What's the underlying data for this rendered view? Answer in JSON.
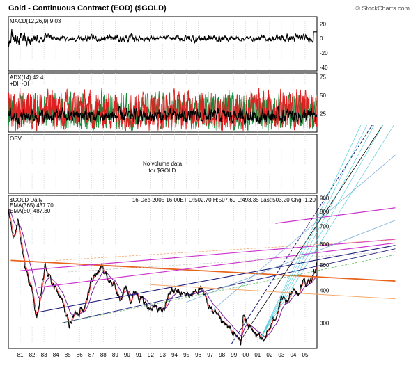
{
  "header": {
    "title": "Gold - Continuous Contract (EOD) ($GOLD)",
    "credit": "© StockCharts.com"
  },
  "colors": {
    "price": "#000000",
    "ema_long": "#7b1fa2",
    "ema_short": "#ff4040",
    "plus_di": "#1a8a3a",
    "minus_di": "#e02020",
    "adx": "#000000",
    "trend_orange": "#e8641c",
    "trend_magenta": "#cc33cc",
    "trend_navy": "#1c1c7a",
    "trend_sky": "#7fb2dc",
    "trend_cyan": "#42c8d8",
    "trend_peach": "#f3a86a"
  },
  "chart_data": {
    "type": "line",
    "x_axis": {
      "tick_labels": [
        "81",
        "82",
        "83",
        "84",
        "85",
        "86",
        "87",
        "88",
        "89",
        "90",
        "91",
        "92",
        "93",
        "94",
        "95",
        "96",
        "97",
        "98",
        "99",
        "00",
        "01",
        "02",
        "03",
        "04",
        "05"
      ]
    },
    "panels": [
      {
        "id": "macd",
        "label": "MACD(12,26,9) 9.03",
        "ylim": [
          -45,
          30
        ],
        "yticks": [
          20,
          0,
          -20,
          -40
        ],
        "series": [
          {
            "name": "MACD(12,26,9)",
            "last": 9.03
          }
        ]
      },
      {
        "id": "adx",
        "label_adx": "ADX(14) 42.4",
        "label_di_plus": "+DI",
        "label_di_minus": "-DI",
        "ylim": [
          0,
          80
        ],
        "yticks": [
          75,
          50,
          25
        ],
        "series": [
          {
            "name": "ADX(14)",
            "last": 42.4
          },
          {
            "name": "+DI"
          },
          {
            "name": "-DI"
          }
        ]
      },
      {
        "id": "obv",
        "label": "OBV",
        "message_line1": "No volume data",
        "message_line2": "for $GOLD"
      },
      {
        "id": "price",
        "label": "$GOLD Daily",
        "ema_long_label": "EMA(365) 437.70",
        "ema_short_label": "EMA(50) 487.30",
        "quote": "16-Dec-2005 16:00ET O:502.70 H:507.60 L:493.35 Last:503.20 Chg:-1.20",
        "scale": "log",
        "ylim": [
          240,
          920
        ],
        "yticks": [
          900,
          800,
          700,
          600,
          500,
          400,
          300
        ],
        "anchors": [
          {
            "year": 1980.0,
            "value": 800
          },
          {
            "year": 1980.4,
            "value": 640
          },
          {
            "year": 1980.8,
            "value": 720
          },
          {
            "year": 1981.5,
            "value": 470
          },
          {
            "year": 1982.0,
            "value": 395
          },
          {
            "year": 1982.4,
            "value": 305
          },
          {
            "year": 1983.1,
            "value": 500
          },
          {
            "year": 1983.6,
            "value": 430
          },
          {
            "year": 1984.4,
            "value": 375
          },
          {
            "year": 1985.1,
            "value": 295
          },
          {
            "year": 1985.6,
            "value": 325
          },
          {
            "year": 1986.4,
            "value": 345
          },
          {
            "year": 1986.9,
            "value": 430
          },
          {
            "year": 1987.9,
            "value": 495
          },
          {
            "year": 1988.4,
            "value": 440
          },
          {
            "year": 1988.9,
            "value": 420
          },
          {
            "year": 1989.4,
            "value": 365
          },
          {
            "year": 1989.9,
            "value": 410
          },
          {
            "year": 1990.3,
            "value": 370
          },
          {
            "year": 1990.7,
            "value": 400
          },
          {
            "year": 1991.4,
            "value": 360
          },
          {
            "year": 1992.2,
            "value": 350
          },
          {
            "year": 1993.0,
            "value": 330
          },
          {
            "year": 1993.6,
            "value": 400
          },
          {
            "year": 1994.6,
            "value": 385
          },
          {
            "year": 1995.5,
            "value": 385
          },
          {
            "year": 1996.1,
            "value": 410
          },
          {
            "year": 1997.0,
            "value": 345
          },
          {
            "year": 1997.9,
            "value": 300
          },
          {
            "year": 1998.4,
            "value": 290
          },
          {
            "year": 1999.6,
            "value": 255
          },
          {
            "year": 1999.8,
            "value": 320
          },
          {
            "year": 2000.5,
            "value": 280
          },
          {
            "year": 2001.3,
            "value": 258
          },
          {
            "year": 2001.9,
            "value": 278
          },
          {
            "year": 2002.5,
            "value": 320
          },
          {
            "year": 2003.0,
            "value": 370
          },
          {
            "year": 2003.5,
            "value": 350
          },
          {
            "year": 2004.0,
            "value": 415
          },
          {
            "year": 2004.4,
            "value": 385
          },
          {
            "year": 2004.9,
            "value": 440
          },
          {
            "year": 2005.4,
            "value": 420
          },
          {
            "year": 2005.96,
            "value": 503
          }
        ],
        "series": [
          {
            "name": "$GOLD",
            "last": 503.2
          },
          {
            "name": "EMA(365)",
            "last": 437.7
          },
          {
            "name": "EMA(50)",
            "last": 487.3
          }
        ]
      }
    ],
    "grid": "vertical dotted"
  }
}
